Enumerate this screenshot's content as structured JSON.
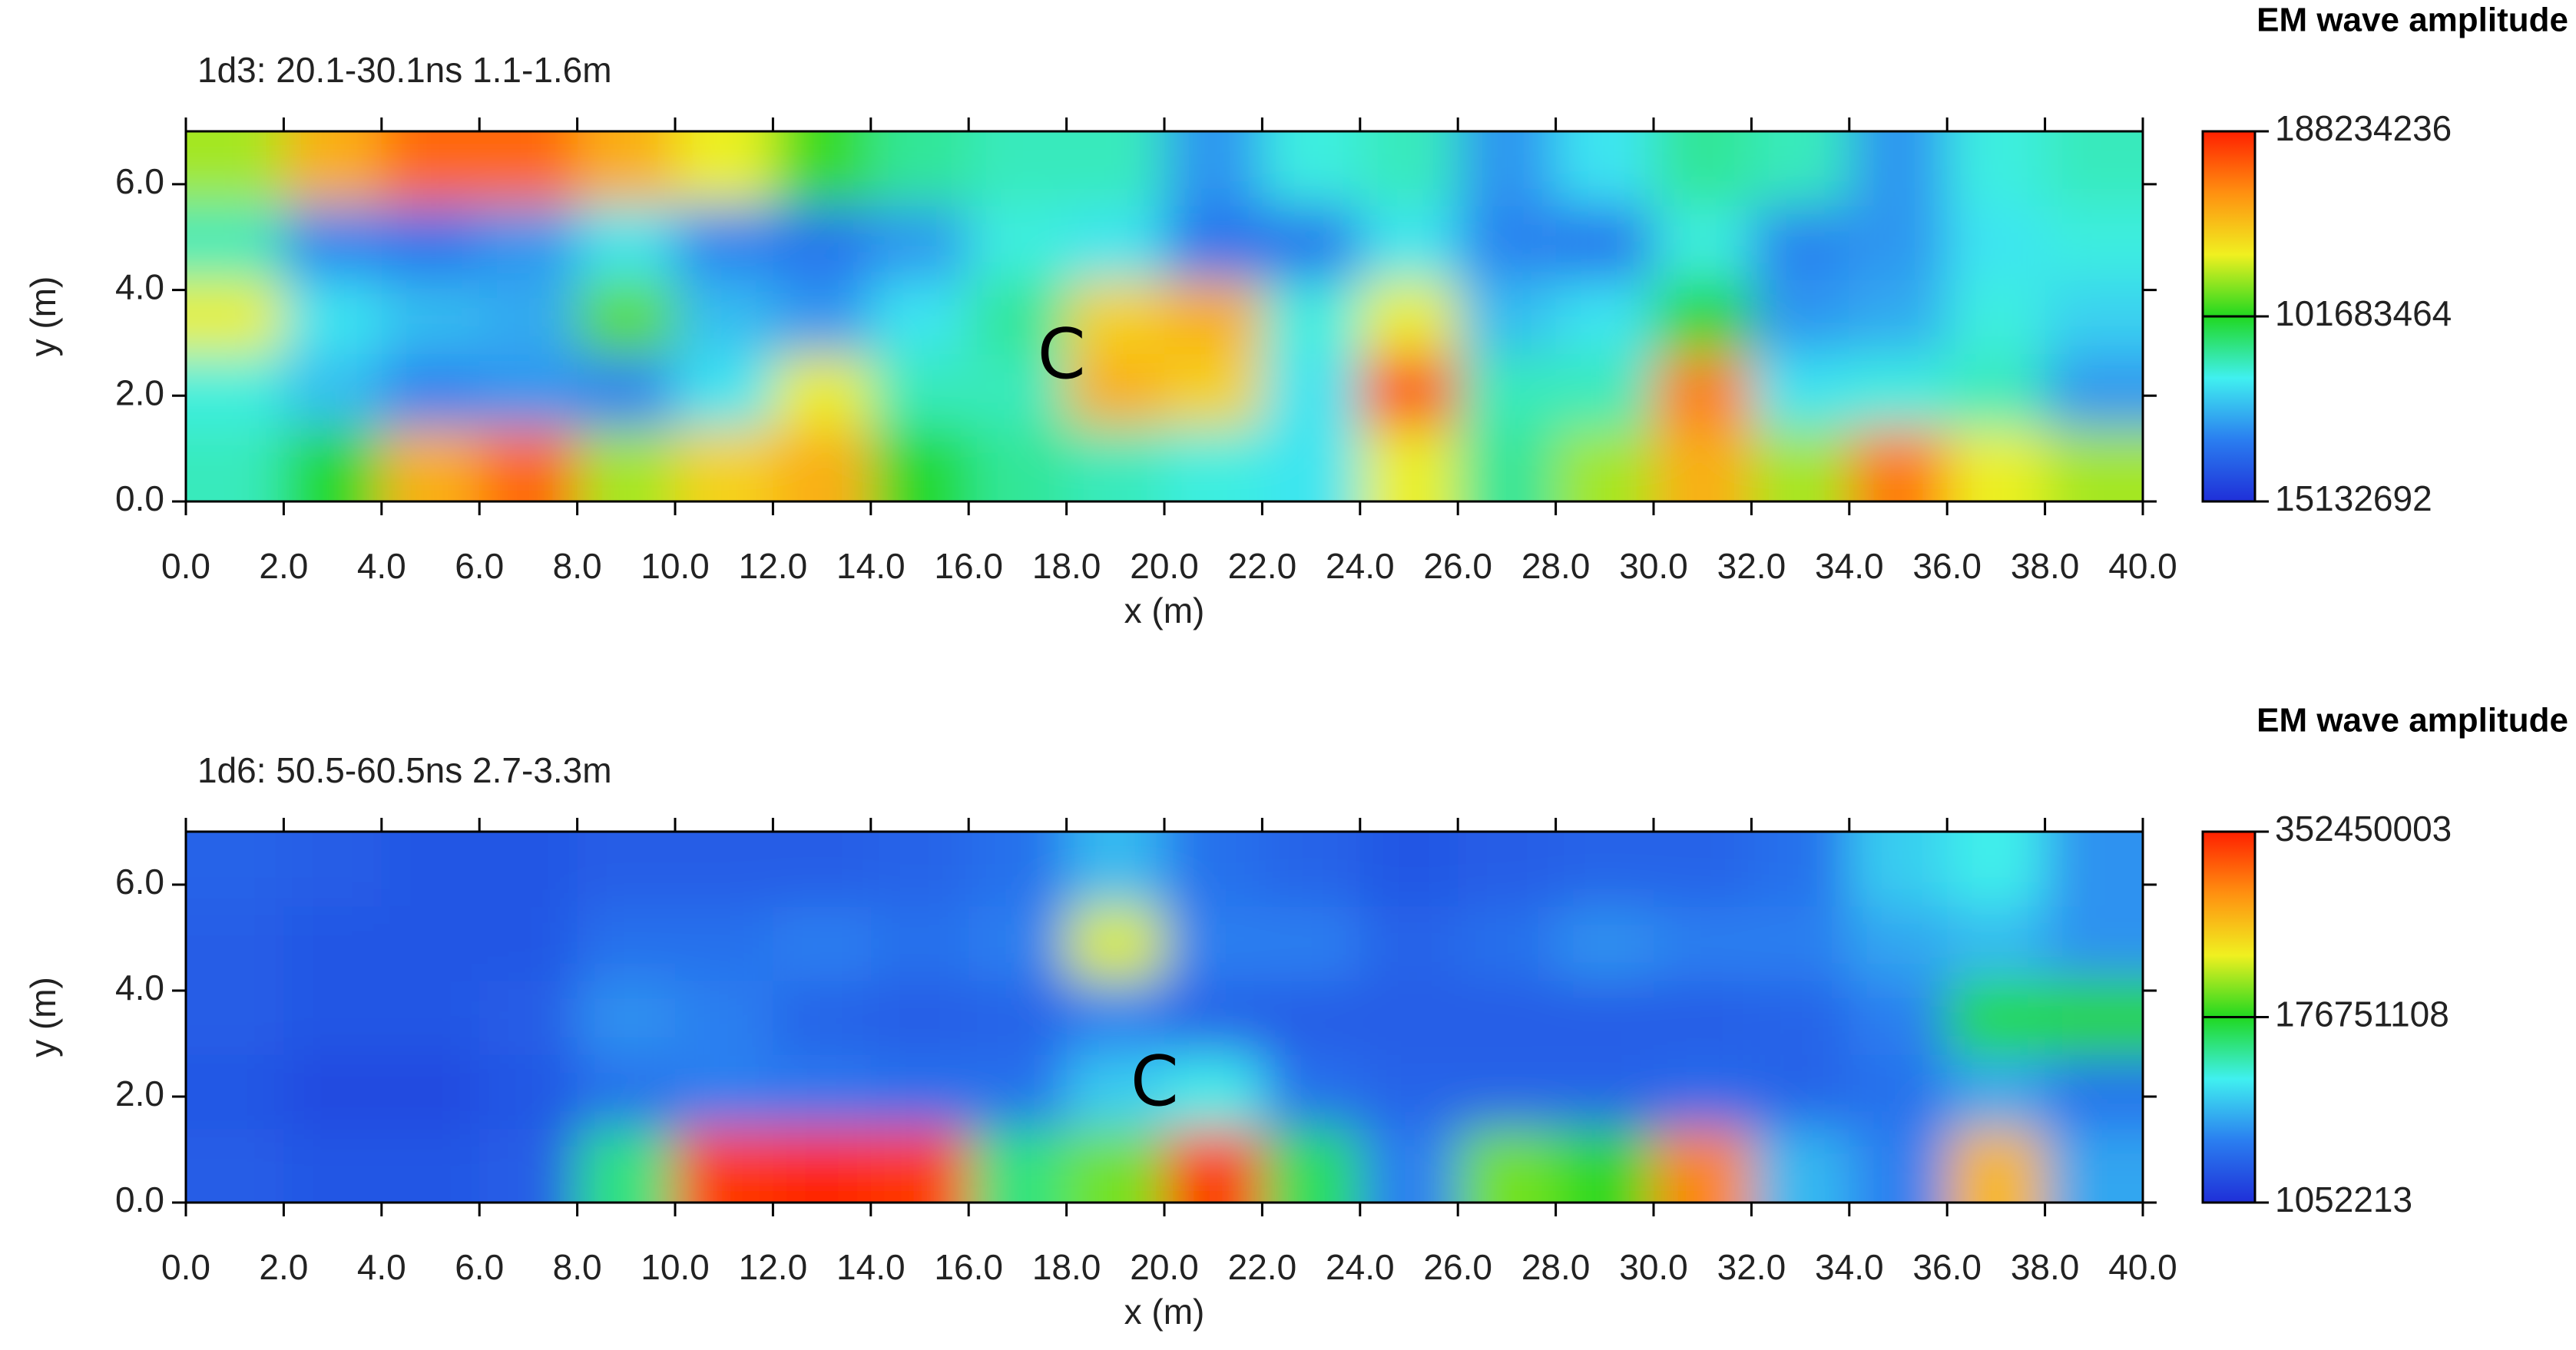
{
  "chart_data": [
    {
      "type": "heatmap",
      "title": "1d3:  20.1-30.1ns  1.1-1.6m",
      "x_label": "x (m)",
      "y_label": "y (m)",
      "colorbar_title": "EM wave amplitude",
      "colors": [
        "#1f2fd8",
        "#2a7ef0",
        "#40f0f0",
        "#20d820",
        "#f0f020",
        "#ff9010",
        "#ff2000"
      ],
      "xlim": [
        0,
        40
      ],
      "xticks": [
        {
          "value": 0,
          "label": "0.0"
        },
        {
          "value": 2,
          "label": "2.0"
        },
        {
          "value": 4,
          "label": "4.0"
        },
        {
          "value": 6,
          "label": "6.0"
        },
        {
          "value": 8,
          "label": "8.0"
        },
        {
          "value": 10,
          "label": "10.0"
        },
        {
          "value": 12,
          "label": "12.0"
        },
        {
          "value": 14,
          "label": "14.0"
        },
        {
          "value": 16,
          "label": "16.0"
        },
        {
          "value": 18,
          "label": "18.0"
        },
        {
          "value": 20,
          "label": "20.0"
        },
        {
          "value": 22,
          "label": "22.0"
        },
        {
          "value": 24,
          "label": "24.0"
        },
        {
          "value": 26,
          "label": "26.0"
        },
        {
          "value": 28,
          "label": "28.0"
        },
        {
          "value": 30,
          "label": "30.0"
        },
        {
          "value": 32,
          "label": "32.0"
        },
        {
          "value": 34,
          "label": "34.0"
        },
        {
          "value": 36,
          "label": "36.0"
        },
        {
          "value": 38,
          "label": "38.0"
        },
        {
          "value": 40,
          "label": "40.0"
        }
      ],
      "ylim": [
        0,
        7
      ],
      "yticks": [
        {
          "value": 0,
          "label": "0.0"
        },
        {
          "value": 2,
          "label": "2.0"
        },
        {
          "value": 4,
          "label": "4.0"
        },
        {
          "value": 6,
          "label": "6.0"
        }
      ],
      "zlim": [
        15132692,
        188234236
      ],
      "zticks": [
        15132692,
        101683464,
        188234236
      ],
      "x": [
        1,
        3,
        5,
        7,
        9,
        11,
        13,
        15,
        17,
        19,
        21,
        23,
        25,
        27,
        29,
        31,
        33,
        35,
        37,
        39
      ],
      "y": [
        0.7,
        2.1,
        3.5,
        4.9,
        6.3
      ],
      "z": [
        [
          80000000,
          100000000,
          150000000,
          170000000,
          120000000,
          140000000,
          150000000,
          100000000,
          85000000,
          80000000,
          75000000,
          70000000,
          130000000,
          85000000,
          120000000,
          150000000,
          120000000,
          165000000,
          130000000,
          120000000
        ],
        [
          75000000,
          60000000,
          45000000,
          50000000,
          45000000,
          70000000,
          130000000,
          80000000,
          80000000,
          150000000,
          140000000,
          70000000,
          175000000,
          80000000,
          80000000,
          165000000,
          70000000,
          75000000,
          80000000,
          50000000
        ],
        [
          130000000,
          70000000,
          60000000,
          55000000,
          110000000,
          60000000,
          50000000,
          70000000,
          85000000,
          140000000,
          150000000,
          75000000,
          130000000,
          60000000,
          70000000,
          100000000,
          50000000,
          55000000,
          75000000,
          65000000
        ],
        [
          80000000,
          45000000,
          40000000,
          50000000,
          70000000,
          45000000,
          40000000,
          50000000,
          75000000,
          70000000,
          40000000,
          40000000,
          70000000,
          45000000,
          40000000,
          75000000,
          45000000,
          50000000,
          70000000,
          75000000
        ],
        [
          120000000,
          150000000,
          170000000,
          170000000,
          150000000,
          130000000,
          105000000,
          85000000,
          80000000,
          80000000,
          50000000,
          75000000,
          80000000,
          50000000,
          70000000,
          85000000,
          80000000,
          50000000,
          75000000,
          80000000
        ]
      ],
      "annotations": [
        {
          "text": "C",
          "x": 17.9,
          "y": 2.7
        }
      ]
    },
    {
      "type": "heatmap",
      "title": "1d6:  50.5-60.5ns  2.7-3.3m",
      "x_label": "x (m)",
      "y_label": "y (m)",
      "colorbar_title": "EM wave amplitude",
      "colors": [
        "#1f2fd8",
        "#2a7ef0",
        "#40f0f0",
        "#20d820",
        "#f0f020",
        "#ff9010",
        "#ff2000"
      ],
      "xlim": [
        0,
        40
      ],
      "xticks": [
        {
          "value": 0,
          "label": "0.0"
        },
        {
          "value": 2,
          "label": "2.0"
        },
        {
          "value": 4,
          "label": "4.0"
        },
        {
          "value": 6,
          "label": "6.0"
        },
        {
          "value": 8,
          "label": "8.0"
        },
        {
          "value": 10,
          "label": "10.0"
        },
        {
          "value": 12,
          "label": "12.0"
        },
        {
          "value": 14,
          "label": "14.0"
        },
        {
          "value": 16,
          "label": "16.0"
        },
        {
          "value": 18,
          "label": "18.0"
        },
        {
          "value": 20,
          "label": "20.0"
        },
        {
          "value": 22,
          "label": "22.0"
        },
        {
          "value": 24,
          "label": "24.0"
        },
        {
          "value": 26,
          "label": "26.0"
        },
        {
          "value": 28,
          "label": "28.0"
        },
        {
          "value": 30,
          "label": "30.0"
        },
        {
          "value": 32,
          "label": "32.0"
        },
        {
          "value": 34,
          "label": "34.0"
        },
        {
          "value": 36,
          "label": "36.0"
        },
        {
          "value": 38,
          "label": "38.0"
        },
        {
          "value": 40,
          "label": "40.0"
        }
      ],
      "ylim": [
        0,
        7
      ],
      "yticks": [
        {
          "value": 0,
          "label": "0.0"
        },
        {
          "value": 2,
          "label": "2.0"
        },
        {
          "value": 4,
          "label": "4.0"
        },
        {
          "value": 6,
          "label": "6.0"
        }
      ],
      "zlim": [
        1052213,
        352450003
      ],
      "zticks": [
        1052213,
        176751108,
        352450003
      ],
      "x": [
        1,
        3,
        5,
        7,
        9,
        11,
        13,
        15,
        17,
        19,
        21,
        23,
        25,
        27,
        29,
        31,
        33,
        35,
        37,
        39
      ],
      "y": [
        0.7,
        2.1,
        3.5,
        4.9,
        6.3
      ],
      "z": [
        [
          35000000,
          30000000,
          30000000,
          35000000,
          150000000,
          340000000,
          350000000,
          340000000,
          150000000,
          200000000,
          340000000,
          160000000,
          60000000,
          200000000,
          180000000,
          300000000,
          90000000,
          60000000,
          270000000,
          80000000
        ],
        [
          30000000,
          20000000,
          20000000,
          30000000,
          50000000,
          60000000,
          55000000,
          50000000,
          50000000,
          100000000,
          120000000,
          50000000,
          40000000,
          40000000,
          40000000,
          45000000,
          40000000,
          50000000,
          80000000,
          50000000
        ],
        [
          35000000,
          30000000,
          30000000,
          35000000,
          70000000,
          60000000,
          40000000,
          35000000,
          40000000,
          60000000,
          40000000,
          35000000,
          35000000,
          35000000,
          35000000,
          35000000,
          40000000,
          60000000,
          170000000,
          180000000
        ],
        [
          35000000,
          30000000,
          30000000,
          30000000,
          50000000,
          50000000,
          60000000,
          50000000,
          60000000,
          230000000,
          60000000,
          60000000,
          40000000,
          50000000,
          70000000,
          60000000,
          60000000,
          80000000,
          90000000,
          70000000
        ],
        [
          40000000,
          35000000,
          30000000,
          30000000,
          35000000,
          35000000,
          35000000,
          40000000,
          50000000,
          90000000,
          50000000,
          40000000,
          30000000,
          35000000,
          40000000,
          40000000,
          50000000,
          100000000,
          120000000,
          70000000
        ]
      ],
      "annotations": [
        {
          "text": "C",
          "x": 19.8,
          "y": 2.2
        }
      ]
    }
  ]
}
